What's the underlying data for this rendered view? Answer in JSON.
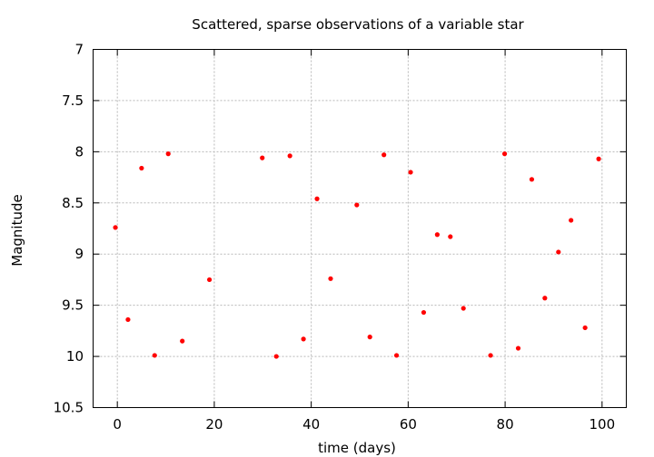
{
  "chart_data": {
    "type": "scatter",
    "title": "Scattered, sparse observations of a variable star",
    "xlabel": "time (days)",
    "ylabel": "Magnitude",
    "xlim": [
      -5,
      105
    ],
    "ylim": [
      10.5,
      7
    ],
    "y_inverted": true,
    "grid": true,
    "legend": "none",
    "marker_color": "#ff0000",
    "x_ticks": [
      0,
      20,
      40,
      60,
      80,
      100
    ],
    "y_ticks": [
      7,
      7.5,
      8,
      8.5,
      9,
      9.5,
      10,
      10.5
    ],
    "x_tick_labels": [
      "0",
      "20",
      "40",
      "60",
      "80",
      "100"
    ],
    "y_tick_labels": [
      "7",
      "7.5",
      "8",
      "8.5",
      "9",
      "9.5",
      "10",
      "10.5"
    ],
    "points": [
      {
        "x": -0.4,
        "y": 8.74
      },
      {
        "x": 2.2,
        "y": 9.64
      },
      {
        "x": 5.0,
        "y": 8.16
      },
      {
        "x": 7.7,
        "y": 9.99
      },
      {
        "x": 10.5,
        "y": 8.02
      },
      {
        "x": 13.4,
        "y": 9.85
      },
      {
        "x": 19.0,
        "y": 9.25
      },
      {
        "x": 29.9,
        "y": 8.06
      },
      {
        "x": 32.8,
        "y": 10.0
      },
      {
        "x": 35.6,
        "y": 8.04
      },
      {
        "x": 38.4,
        "y": 9.83
      },
      {
        "x": 41.2,
        "y": 8.46
      },
      {
        "x": 44.0,
        "y": 9.24
      },
      {
        "x": 49.4,
        "y": 8.52
      },
      {
        "x": 52.1,
        "y": 9.81
      },
      {
        "x": 55.0,
        "y": 8.03
      },
      {
        "x": 57.6,
        "y": 9.99
      },
      {
        "x": 60.5,
        "y": 8.2
      },
      {
        "x": 63.2,
        "y": 9.57
      },
      {
        "x": 66.0,
        "y": 8.81
      },
      {
        "x": 68.7,
        "y": 8.83
      },
      {
        "x": 71.4,
        "y": 9.53
      },
      {
        "x": 77.0,
        "y": 9.99
      },
      {
        "x": 79.9,
        "y": 8.02
      },
      {
        "x": 82.7,
        "y": 9.92
      },
      {
        "x": 85.5,
        "y": 8.27
      },
      {
        "x": 88.2,
        "y": 9.43
      },
      {
        "x": 91.0,
        "y": 8.98
      },
      {
        "x": 93.6,
        "y": 8.67
      },
      {
        "x": 96.5,
        "y": 9.72
      },
      {
        "x": 99.3,
        "y": 8.07
      }
    ]
  }
}
